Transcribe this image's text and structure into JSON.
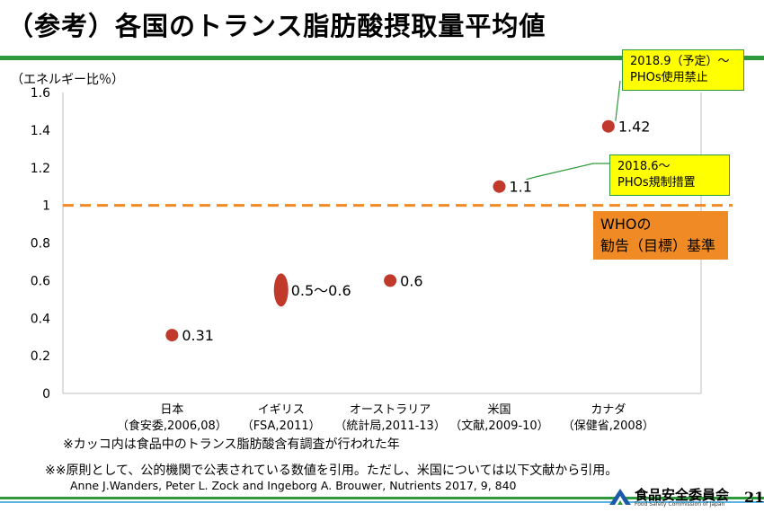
{
  "title": "（参考）各国のトランス脂肪酸摂取量平均値",
  "chart_data": {
    "type": "scatter",
    "ylabel": "（エネルギー比％）",
    "ylim": [
      0,
      1.6
    ],
    "yticks": [
      0,
      0.2,
      0.4,
      0.6,
      0.8,
      1,
      1.2,
      1.4,
      1.6
    ],
    "ytick_labels": [
      "0",
      "0.2",
      "0.4",
      "0.6",
      "0.8",
      "1",
      "1.2",
      "1.4",
      "1.6"
    ],
    "categories": [
      {
        "name": "日本",
        "source": "（食安委,2006,08）"
      },
      {
        "name": "イギリス",
        "source": "（FSA,2011）"
      },
      {
        "name": "オーストラリア",
        "source": "（統計局,2011-13）"
      },
      {
        "name": "米国",
        "source": "（文献,2009-10）"
      },
      {
        "name": "カナダ",
        "source": "（保健省,2008）"
      }
    ],
    "points": [
      {
        "value": 0.31,
        "label": "0.31"
      },
      {
        "value": 0.55,
        "low": 0.5,
        "high": 0.6,
        "label": "0.5～0.6"
      },
      {
        "value": 0.6,
        "label": "0.6"
      },
      {
        "value": 1.1,
        "label": "1.1"
      },
      {
        "value": 1.42,
        "label": "1.42"
      }
    ],
    "reference_line": {
      "value": 1,
      "label_lines": [
        "WHOの",
        "勧告（目標）基準"
      ],
      "color": "#f08a24"
    },
    "point_color": "#c0392b",
    "annotations": [
      {
        "target": 4,
        "lines": [
          "2018.9（予定）～",
          "PHOs使用禁止"
        ]
      },
      {
        "target": 3,
        "lines": [
          "2018.6～",
          "PHOs規制措置"
        ]
      }
    ]
  },
  "notes": {
    "note1": "※カッコ内は食品中のトランス脂肪酸含有調査が行われた年",
    "note2": "※※原則として、公的機関で公表されている数値を引用。ただし、米国については以下文献から引用。",
    "citation": "Anne J.Wanders, Peter L. Zock and Ingeborg A. Brouwer, Nutrients 2017, 9, 840"
  },
  "footer": {
    "org_name": "食品安全委員会",
    "org_name_en": "Food Safety Commission of Japan",
    "page_number": "21"
  },
  "colors": {
    "accent_green": "#2e9a3c",
    "callout_yellow": "#ffff00",
    "who_orange": "#f08a24"
  }
}
